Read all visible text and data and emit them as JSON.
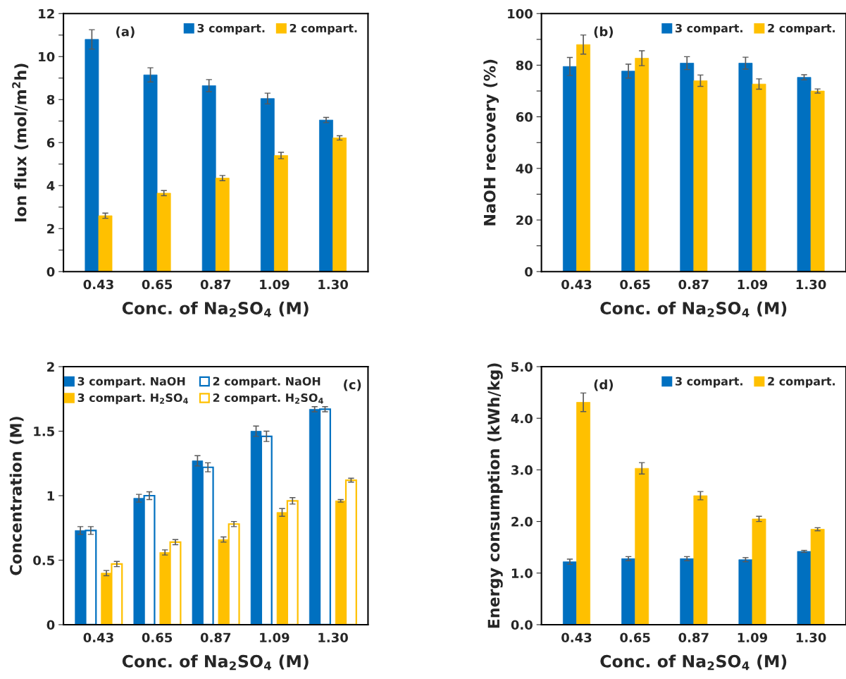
{
  "chart_data": [
    {
      "type": "bar",
      "categories": [
        "0.43",
        "0.65",
        "0.87",
        "1.09",
        "1.30"
      ],
      "xlabel": "Conc. of Na$_{2}$SO$_{4}$ (M)",
      "ylabel": "Ion flux (mol/m$^{2}$h)",
      "annotations": [
        "(a)"
      ],
      "ylim": [
        0,
        12
      ],
      "yticks": [
        0,
        {
          "value": 1,
          "label": null
        },
        2,
        {
          "value": 3,
          "label": null
        },
        4,
        {
          "value": 5,
          "label": null
        },
        6,
        {
          "value": 7,
          "label": null
        },
        8,
        {
          "value": 9,
          "label": null
        },
        10,
        {
          "value": 11,
          "label": null
        },
        12
      ],
      "legend": "top right",
      "grid": false,
      "series": [
        {
          "name": "3 compart.",
          "color": "#0070c0",
          "values": [
            10.8,
            9.15,
            8.65,
            8.05,
            7.05
          ],
          "errors": [
            0.45,
            0.33,
            0.28,
            0.25,
            0.12
          ]
        },
        {
          "name": "2 compart.",
          "color": "#ffc000",
          "values": [
            2.6,
            3.65,
            4.35,
            5.4,
            6.22
          ],
          "errors": [
            0.12,
            0.12,
            0.12,
            0.15,
            0.1
          ]
        }
      ]
    },
    {
      "type": "bar",
      "categories": [
        "0.43",
        "0.65",
        "0.87",
        "1.09",
        "1.30"
      ],
      "xlabel": "Conc. of Na$_{2}$SO$_{4}$ (M)",
      "ylabel": "NaOH recovery (%)",
      "annotations": [
        "(b)"
      ],
      "ylim": [
        0,
        100
      ],
      "yticks": [
        0,
        {
          "value": 10,
          "label": null
        },
        20,
        {
          "value": 30,
          "label": null
        },
        40,
        {
          "value": 50,
          "label": null
        },
        60,
        {
          "value": 70,
          "label": null
        },
        80,
        {
          "value": 90,
          "label": null
        },
        100
      ],
      "legend": "top right",
      "grid": false,
      "series": [
        {
          "name": "3 compart.",
          "color": "#0070c0",
          "values": [
            79.5,
            77.7,
            80.8,
            80.8,
            75.3
          ],
          "errors": [
            3.5,
            2.7,
            2.5,
            2.3,
            1.0
          ]
        },
        {
          "name": "2 compart.",
          "color": "#ffc000",
          "values": [
            88.0,
            82.7,
            74.0,
            72.7,
            70.0
          ],
          "errors": [
            3.7,
            2.9,
            2.2,
            2.0,
            0.8
          ]
        }
      ]
    },
    {
      "type": "bar",
      "categories": [
        "0.43",
        "0.65",
        "0.87",
        "1.09",
        "1.30"
      ],
      "xlabel": "Conc. of Na$_{2}$SO$_{4}$ (M)",
      "ylabel": "Concentration (M)",
      "annotations": [
        "(c)"
      ],
      "ylim": [
        0,
        2
      ],
      "yticks": [
        0,
        0.5,
        1,
        1.5,
        2
      ],
      "legend": "top",
      "grid": false,
      "series": [
        {
          "name": "3 compart. NaOH",
          "color": "#0070c0",
          "values": [
            0.73,
            0.98,
            1.27,
            1.5,
            1.67
          ],
          "errors": [
            0.03,
            0.03,
            0.04,
            0.04,
            0.02
          ]
        },
        {
          "name": "2 compart. NaOH",
          "color": "#0070c0",
          "values": [
            0.73,
            1.0,
            1.22,
            1.46,
            1.67
          ],
          "errors": [
            0.03,
            0.03,
            0.035,
            0.04,
            0.02
          ]
        },
        {
          "name": "3 compart. H$_{2}$SO$_{4}$",
          "color": "#ffc000",
          "values": [
            0.4,
            0.56,
            0.66,
            0.87,
            0.96
          ],
          "errors": [
            0.02,
            0.02,
            0.02,
            0.03,
            0.01
          ]
        },
        {
          "name": "2 compart. H$_{2}$SO$_{4}$",
          "color": "#ffc000",
          "values": [
            0.47,
            0.64,
            0.78,
            0.96,
            1.12
          ],
          "errors": [
            0.02,
            0.02,
            0.02,
            0.025,
            0.015
          ]
        }
      ]
    },
    {
      "type": "bar",
      "categories": [
        "0.43",
        "0.65",
        "0.87",
        "1.09",
        "1.30"
      ],
      "xlabel": "Conc. of Na$_{2}$SO$_{4}$ (M)",
      "ylabel": "Energy consumption (kWh/kg)",
      "annotations": [
        "(d)"
      ],
      "ylim": [
        0,
        5
      ],
      "yticks": [
        {
          "value": 0,
          "label": "0.0"
        },
        {
          "value": 1,
          "label": "1.0"
        },
        {
          "value": 2,
          "label": "2.0"
        },
        {
          "value": 3,
          "label": "3.0"
        },
        {
          "value": 4,
          "label": "4.0"
        },
        {
          "value": 5,
          "label": "5.0"
        }
      ],
      "legend": "top right",
      "grid": false,
      "series": [
        {
          "name": "3 compart.",
          "color": "#0070c0",
          "values": [
            1.22,
            1.28,
            1.28,
            1.26,
            1.42
          ],
          "errors": [
            0.05,
            0.04,
            0.04,
            0.04,
            0.02
          ]
        },
        {
          "name": "2 compart.",
          "color": "#ffc000",
          "values": [
            4.31,
            3.03,
            2.5,
            2.05,
            1.85
          ],
          "errors": [
            0.18,
            0.11,
            0.08,
            0.05,
            0.03
          ]
        }
      ]
    }
  ]
}
